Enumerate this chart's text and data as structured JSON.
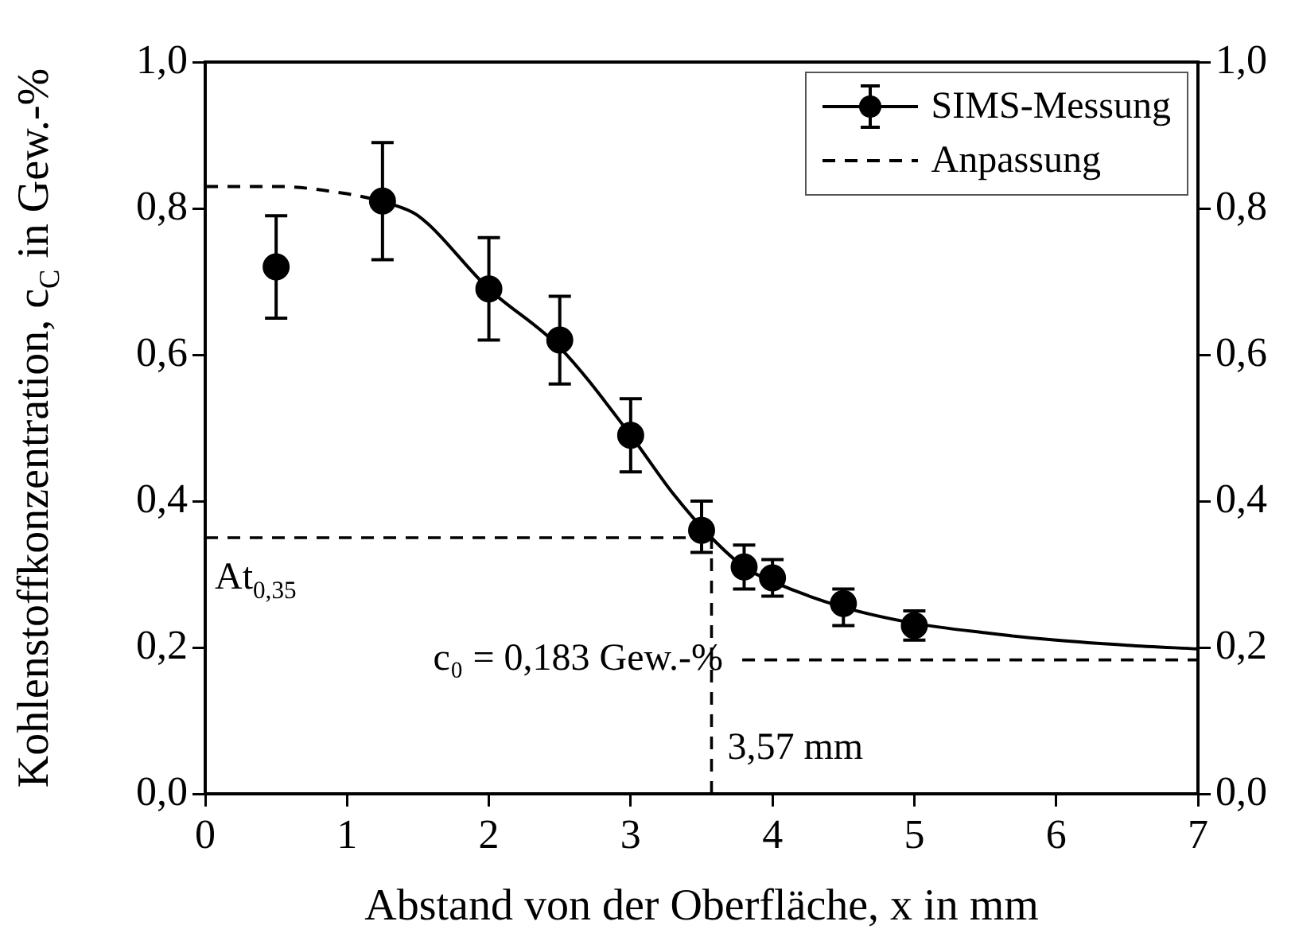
{
  "chart_data": {
    "type": "scatter",
    "xlabel": "Abstand von der Oberfläche, x in mm",
    "ylabel": "Kohlenstoffkonzentration, c$_{C}$ in Gew.-%",
    "xlim": [
      0,
      7
    ],
    "xticks": [
      0,
      1,
      2,
      3,
      4,
      5,
      6,
      7
    ],
    "ylim": [
      0,
      1
    ],
    "yticks": [
      {
        "value": 0,
        "label": "0,0"
      },
      {
        "value": 0.2,
        "label": "0,2"
      },
      {
        "value": 0.4,
        "label": "0,4"
      },
      {
        "value": 0.6,
        "label": "0,6"
      },
      {
        "value": 0.8,
        "label": "0,8"
      },
      {
        "value": 1,
        "label": "1,0"
      }
    ],
    "y2lim": [
      0,
      1
    ],
    "y2ticks": [
      {
        "value": 0,
        "label": "0,0"
      },
      {
        "value": 0.2,
        "label": "0,2"
      },
      {
        "value": 0.4,
        "label": "0,4"
      },
      {
        "value": 0.6,
        "label": "0,6"
      },
      {
        "value": 0.8,
        "label": "0,8"
      },
      {
        "value": 1,
        "label": "1,0"
      }
    ],
    "grid": false,
    "legend": "top right",
    "series": [
      {
        "name": "SIMS-Messung",
        "type": "scatter",
        "color": "#000000",
        "marker": "circle",
        "x": [
          0.5,
          1.25,
          2,
          2.5,
          3,
          3.5,
          3.8,
          4,
          4.5,
          5
        ],
        "values": [
          0.72,
          0.81,
          0.69,
          0.62,
          0.49,
          0.36,
          0.31,
          0.295,
          0.26,
          0.23
        ],
        "errors": [
          [
            0.65,
            0.79
          ],
          [
            0.73,
            0.89
          ],
          [
            0.62,
            0.76
          ],
          [
            0.56,
            0.68
          ],
          [
            0.44,
            0.54
          ],
          [
            0.33,
            0.4
          ],
          [
            0.28,
            0.34
          ],
          [
            0.27,
            0.32
          ],
          [
            0.23,
            0.28
          ],
          [
            0.21,
            0.25
          ]
        ]
      },
      {
        "name": "Anpassung",
        "type": "line",
        "color": "#000000",
        "line_style": "dashed",
        "marker": "none",
        "x": [
          0,
          0.5,
          1,
          1.25
        ],
        "values": [
          0.83,
          0.83,
          0.82,
          0.81
        ]
      },
      {
        "type": "line",
        "color": "#000000",
        "line_style": "solid",
        "marker": "none",
        "x": [
          1.25,
          1.5,
          2,
          2.5,
          3,
          3.3,
          3.57,
          3.8,
          4,
          4.5,
          5,
          5.5,
          6,
          6.5,
          7
        ],
        "values": [
          0.81,
          0.79,
          0.69,
          0.61,
          0.49,
          0.41,
          0.35,
          0.31,
          0.29,
          0.255,
          0.233,
          0.22,
          0.21,
          0.203,
          0.198
        ]
      }
    ],
    "ref_lines": [
      {
        "axis": "y",
        "value": 0.35,
        "label": "At$_{0,35}$",
        "line_style": "dashed",
        "color": "#000000"
      },
      {
        "axis": "x",
        "value": 3.57,
        "label": "3,57 mm",
        "line_style": "dashed",
        "color": "#000000"
      },
      {
        "axis": "y",
        "value": 0.183,
        "label": "c₀ = 0,183 Gew.-%",
        "line_style": "dashed",
        "color": "#000000"
      }
    ]
  }
}
